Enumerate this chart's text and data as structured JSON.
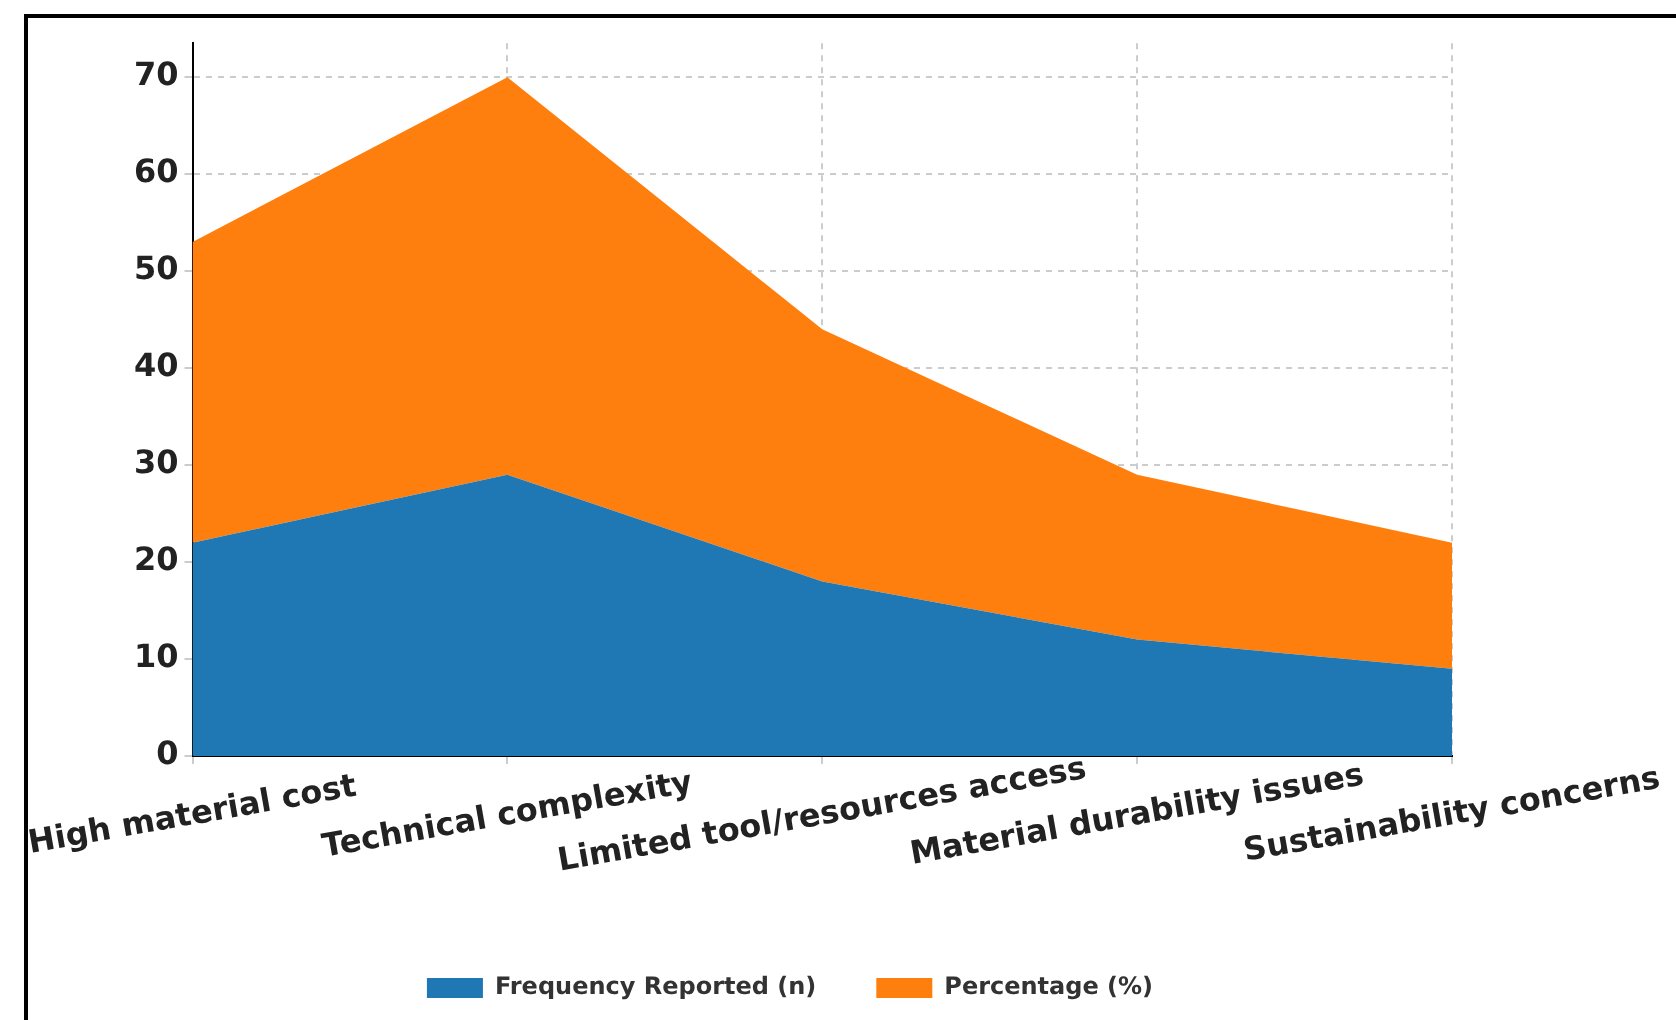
{
  "chart_data": {
    "type": "area",
    "stacked": true,
    "categories": [
      "High material cost",
      "Technical complexity",
      "Limited tool/resources access",
      "Material durability issues",
      "Sustainability concerns"
    ],
    "series": [
      {
        "name": "Frequency Reported (n)",
        "color": "#1f77b4",
        "values": [
          22,
          29,
          18,
          12,
          9
        ]
      },
      {
        "name": "Percentage (%)",
        "color": "#ff7f0e",
        "values": [
          31,
          41,
          26,
          17,
          13
        ]
      }
    ],
    "ylim": [
      0,
      73.5
    ],
    "yticks": [
      0,
      10,
      20,
      30,
      40,
      50,
      60,
      70
    ],
    "grid": true,
    "legend": "bottom"
  }
}
